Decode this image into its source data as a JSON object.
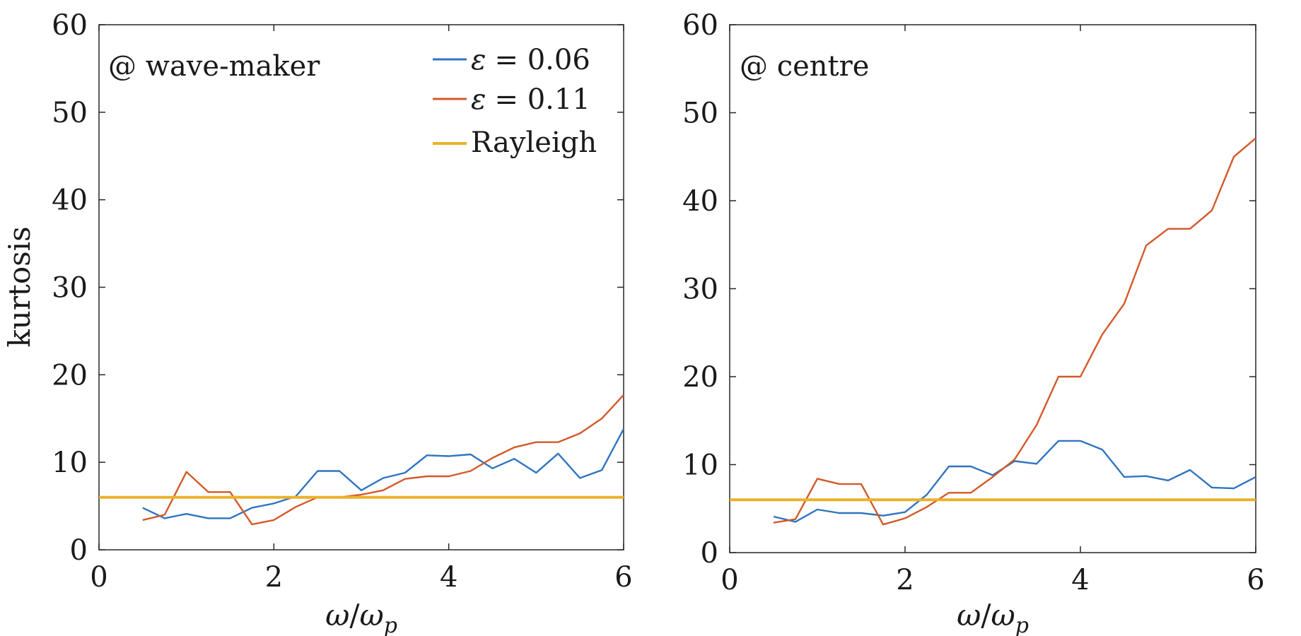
{
  "chart_data": [
    {
      "type": "line",
      "annotation": "@ wave-maker",
      "xlabel": {
        "main": "ω",
        "sep": "/",
        "base": "ω",
        "sub": "p"
      },
      "ylabel": "kurtosis",
      "xlim": [
        0,
        6
      ],
      "ylim": [
        0,
        60
      ],
      "xticks": [
        "0",
        "2",
        "4",
        "6"
      ],
      "yticks": [
        "0",
        "10",
        "20",
        "30",
        "40",
        "50",
        "60"
      ],
      "legend_position": "top-right",
      "series": [
        {
          "name": "ε = 0.06",
          "legend_symbol": "ε",
          "legend_rest": "= 0.06",
          "color": "#2f74c0",
          "x": [
            0.5,
            0.75,
            1.0,
            1.25,
            1.5,
            1.75,
            2.0,
            2.25,
            2.5,
            2.75,
            3.0,
            3.25,
            3.5,
            3.75,
            4.0,
            4.25,
            4.5,
            4.75,
            5.0,
            5.25,
            5.5,
            5.75,
            6.0
          ],
          "y": [
            4.8,
            3.6,
            4.1,
            3.6,
            3.6,
            4.8,
            5.3,
            6.1,
            9.0,
            9.0,
            6.8,
            8.2,
            8.8,
            10.8,
            10.7,
            10.9,
            9.3,
            10.4,
            8.8,
            11.0,
            8.2,
            9.1,
            13.8
          ]
        },
        {
          "name": "ε = 0.11",
          "legend_symbol": "ε",
          "legend_rest": "= 0.11",
          "color": "#d3592a",
          "x": [
            0.5,
            0.75,
            1.0,
            1.25,
            1.5,
            1.75,
            2.0,
            2.25,
            2.5,
            2.75,
            3.0,
            3.25,
            3.5,
            3.75,
            4.0,
            4.25,
            4.5,
            4.75,
            5.0,
            5.25,
            5.5,
            5.75,
            6.0
          ],
          "y": [
            3.4,
            4.0,
            8.9,
            6.6,
            6.6,
            2.9,
            3.4,
            4.9,
            6.0,
            6.0,
            6.3,
            6.8,
            8.1,
            8.4,
            8.4,
            9.0,
            10.5,
            11.7,
            12.3,
            12.3,
            13.3,
            15.0,
            17.7
          ]
        },
        {
          "name": "Rayleigh",
          "legend_symbol": "",
          "legend_rest": "Rayleigh",
          "color": "#ebb12a",
          "x": [
            0,
            6
          ],
          "y": [
            6,
            6
          ]
        }
      ]
    },
    {
      "type": "line",
      "annotation": "@ centre",
      "xlabel": {
        "main": "ω",
        "sep": "/",
        "base": "ω",
        "sub": "p"
      },
      "ylabel": "",
      "xlim": [
        0,
        6
      ],
      "ylim": [
        0,
        60
      ],
      "xticks": [
        "0",
        "2",
        "4",
        "6"
      ],
      "yticks": [
        "0",
        "10",
        "20",
        "30",
        "40",
        "50",
        "60"
      ],
      "series": [
        {
          "color": "#2f74c0",
          "x": [
            0.5,
            0.75,
            1.0,
            1.25,
            1.5,
            1.75,
            2.0,
            2.25,
            2.5,
            2.75,
            3.0,
            3.25,
            3.5,
            3.75,
            4.0,
            4.25,
            4.5,
            4.75,
            5.0,
            5.25,
            5.5,
            5.75,
            6.0
          ],
          "y": [
            4.1,
            3.5,
            4.9,
            4.5,
            4.5,
            4.2,
            4.6,
            6.6,
            9.8,
            9.8,
            8.8,
            10.4,
            10.1,
            12.7,
            12.7,
            11.7,
            8.6,
            8.7,
            8.2,
            9.4,
            7.4,
            7.3,
            8.6
          ]
        },
        {
          "color": "#d3592a",
          "x": [
            0.5,
            0.75,
            1.0,
            1.25,
            1.5,
            1.75,
            2.0,
            2.25,
            2.5,
            2.75,
            3.0,
            3.25,
            3.5,
            3.75,
            4.0,
            4.25,
            4.5,
            4.75,
            5.0,
            5.25,
            5.5,
            5.75,
            6.0
          ],
          "y": [
            3.4,
            3.8,
            8.4,
            7.8,
            7.8,
            3.2,
            3.9,
            5.2,
            6.8,
            6.8,
            8.6,
            10.6,
            14.5,
            20.0,
            20.0,
            24.8,
            28.3,
            34.9,
            36.8,
            36.8,
            38.9,
            45.0,
            47.1
          ]
        },
        {
          "color": "#ebb12a",
          "x": [
            0,
            6
          ],
          "y": [
            6,
            6
          ]
        }
      ]
    }
  ]
}
